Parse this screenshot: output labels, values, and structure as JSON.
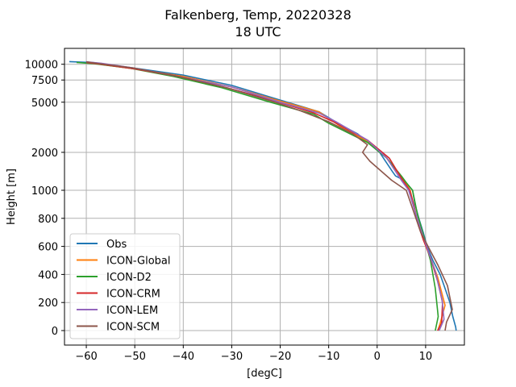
{
  "chart_data": {
    "type": "line",
    "title": "Falkenberg, Temp, 20220328",
    "subtitle": "18 UTC",
    "xlabel": "[degC]",
    "ylabel": "Height [m]",
    "xlim": [
      -64.5,
      18
    ],
    "grid": true,
    "legend_position": "lower-left",
    "x_ticks": [
      -60,
      -50,
      -40,
      -30,
      -20,
      -10,
      0,
      10
    ],
    "y_ticks": [
      0,
      200,
      400,
      600,
      800,
      1000,
      2000,
      5000,
      7500,
      10000
    ],
    "y_tick_labels": [
      "0",
      "200",
      "400",
      "600",
      "800",
      "1000",
      "2000",
      "5000",
      "7500",
      "10000"
    ],
    "y_scale": "piecewise: linear 0-1000 m, logarithmic above 1000 m",
    "series": [
      {
        "name": "Obs",
        "color": "#1f77b4",
        "points": [
          [
            16.3,
            0
          ],
          [
            16.2,
            25
          ],
          [
            15.6,
            100
          ],
          [
            15,
            200
          ],
          [
            14,
            300
          ],
          [
            13,
            400
          ],
          [
            11.5,
            500
          ],
          [
            10.3,
            600
          ],
          [
            9.5,
            700
          ],
          [
            8.6,
            800
          ],
          [
            7.8,
            900
          ],
          [
            7.3,
            1000
          ],
          [
            5.5,
            1200
          ],
          [
            3.8,
            1300
          ],
          [
            3.2,
            1400
          ],
          [
            0.5,
            2000
          ],
          [
            -4,
            2800
          ],
          [
            -7.5,
            3300
          ],
          [
            -12,
            4200
          ],
          [
            -20,
            5200
          ],
          [
            -30,
            6800
          ],
          [
            -40,
            8200
          ],
          [
            -50,
            9300
          ],
          [
            -58.5,
            10300
          ],
          [
            -63.5,
            10500
          ]
        ]
      },
      {
        "name": "ICON-Global",
        "color": "#ff7f0e",
        "points": [
          [
            12.5,
            0
          ],
          [
            13,
            50
          ],
          [
            14,
            180
          ],
          [
            12.5,
            380
          ],
          [
            11,
            520
          ],
          [
            9.5,
            650
          ],
          [
            8,
            830
          ],
          [
            6.8,
            1000
          ],
          [
            5.5,
            1200
          ],
          [
            4.2,
            1400
          ],
          [
            1,
            2000
          ],
          [
            -2.5,
            2500
          ],
          [
            -8,
            3300
          ],
          [
            -12,
            4200
          ],
          [
            -20,
            5100
          ],
          [
            -30,
            6600
          ],
          [
            -40,
            8000
          ],
          [
            -50,
            9200
          ],
          [
            -58,
            10100
          ],
          [
            -60,
            10400
          ]
        ]
      },
      {
        "name": "ICON-D2",
        "color": "#2ca02c",
        "points": [
          [
            12,
            0
          ],
          [
            12.6,
            100
          ],
          [
            12,
            300
          ],
          [
            11,
            500
          ],
          [
            9.8,
            650
          ],
          [
            8.3,
            830
          ],
          [
            7.3,
            1000
          ],
          [
            6,
            1150
          ],
          [
            5,
            1300
          ],
          [
            2,
            1800
          ],
          [
            -2,
            2400
          ],
          [
            -10,
            3400
          ],
          [
            -13,
            4000
          ],
          [
            -22,
            5000
          ],
          [
            -32,
            6500
          ],
          [
            -42,
            8000
          ],
          [
            -51,
            9300
          ],
          [
            -58.5,
            10100
          ],
          [
            -62,
            10350
          ]
        ]
      },
      {
        "name": "ICON-CRM",
        "color": "#d62728",
        "points": [
          [
            12.5,
            0
          ],
          [
            13.3,
            50
          ],
          [
            13.5,
            200
          ],
          [
            12.5,
            350
          ],
          [
            11,
            520
          ],
          [
            9.5,
            650
          ],
          [
            8.5,
            750
          ],
          [
            7.5,
            900
          ],
          [
            6.7,
            1000
          ],
          [
            5,
            1250
          ],
          [
            2.5,
            1800
          ],
          [
            -2,
            2500
          ],
          [
            -9,
            3500
          ],
          [
            -13,
            4100
          ],
          [
            -21,
            5100
          ],
          [
            -31,
            6500
          ],
          [
            -41,
            8000
          ],
          [
            -50,
            9200
          ],
          [
            -57,
            10000
          ],
          [
            -60,
            10350
          ]
        ]
      },
      {
        "name": "ICON-LEM",
        "color": "#9467bd",
        "points": [
          [
            12.8,
            0
          ],
          [
            13.8,
            80
          ],
          [
            13.4,
            220
          ],
          [
            12,
            420
          ],
          [
            10.5,
            570
          ],
          [
            9,
            720
          ],
          [
            7.8,
            850
          ],
          [
            6.5,
            1000
          ],
          [
            5,
            1200
          ],
          [
            2,
            1800
          ],
          [
            -2,
            2500
          ],
          [
            -8.5,
            3500
          ],
          [
            -12,
            4100
          ],
          [
            -20,
            5000
          ],
          [
            -30,
            6600
          ],
          [
            -41,
            8000
          ],
          [
            -50,
            9300
          ],
          [
            -57,
            10200
          ],
          [
            -60,
            10450
          ]
        ]
      },
      {
        "name": "ICON-SCM",
        "color": "#8c564b",
        "points": [
          [
            14,
            0
          ],
          [
            14.3,
            60
          ],
          [
            15.5,
            150
          ],
          [
            14.5,
            320
          ],
          [
            12.5,
            470
          ],
          [
            10.5,
            600
          ],
          [
            9,
            700
          ],
          [
            7.5,
            850
          ],
          [
            6,
            1000
          ],
          [
            3,
            1200
          ],
          [
            -1.5,
            1700
          ],
          [
            -3,
            2000
          ],
          [
            -2,
            2300
          ],
          [
            -5,
            2800
          ],
          [
            -10,
            3500
          ],
          [
            -16,
            4300
          ],
          [
            -21,
            5000
          ],
          [
            -31,
            6500
          ],
          [
            -41,
            8000
          ],
          [
            -50,
            9300
          ],
          [
            -58,
            10200
          ],
          [
            -60,
            10450
          ]
        ]
      }
    ]
  }
}
